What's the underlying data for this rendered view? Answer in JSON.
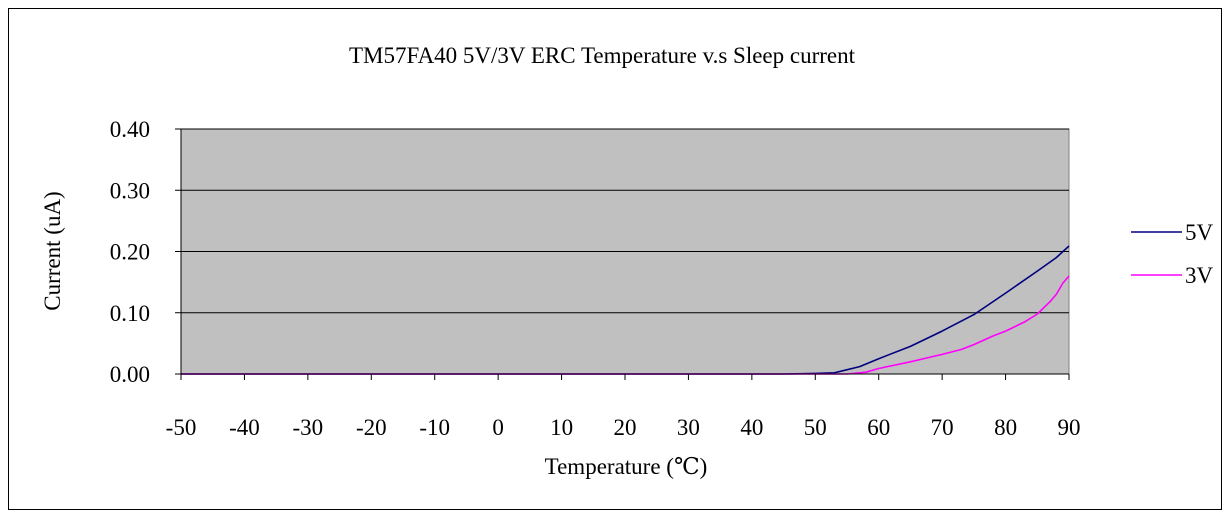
{
  "chart_data": {
    "type": "line",
    "title": "TM57FA40 5V/3V ERC Temperature v.s Sleep current",
    "xlabel": "Temperature (℃)",
    "ylabel": "Current (uA)",
    "categories": [
      "-50",
      "-40",
      "-30",
      "-20",
      "-10",
      "0",
      "10",
      "20",
      "30",
      "40",
      "50",
      "60",
      "70",
      "80",
      "90"
    ],
    "xlim": [
      -50,
      90
    ],
    "ylim": [
      0,
      0.4
    ],
    "yticks": [
      "0.00",
      "0.10",
      "0.20",
      "0.30",
      "0.40"
    ],
    "grid": true,
    "legend_position": "right",
    "plot_background": "#c0c0c0",
    "series": [
      {
        "name": "5V",
        "color": "#000080",
        "x": [
          -50,
          -40,
          -30,
          -20,
          -10,
          0,
          10,
          20,
          30,
          40,
          45,
          50,
          53,
          57,
          60,
          65,
          70,
          75,
          80,
          85,
          88,
          90
        ],
        "values": [
          0,
          0,
          0,
          0,
          0,
          0,
          0,
          0,
          0,
          0,
          0,
          0.001,
          0.002,
          0.012,
          0.025,
          0.045,
          0.07,
          0.097,
          0.132,
          0.168,
          0.19,
          0.209
        ]
      },
      {
        "name": "3V",
        "color": "#ff00ff",
        "x": [
          -50,
          -40,
          -30,
          -20,
          -10,
          0,
          10,
          20,
          30,
          40,
          50,
          55,
          58,
          60,
          65,
          70,
          73,
          75,
          78,
          80,
          83,
          85,
          87,
          88,
          89,
          90
        ],
        "values": [
          0,
          0,
          0,
          0,
          0,
          0,
          0,
          0,
          0,
          0,
          0,
          0,
          0.003,
          0.009,
          0.02,
          0.032,
          0.04,
          0.048,
          0.062,
          0.07,
          0.085,
          0.098,
          0.118,
          0.13,
          0.148,
          0.16
        ]
      }
    ]
  }
}
